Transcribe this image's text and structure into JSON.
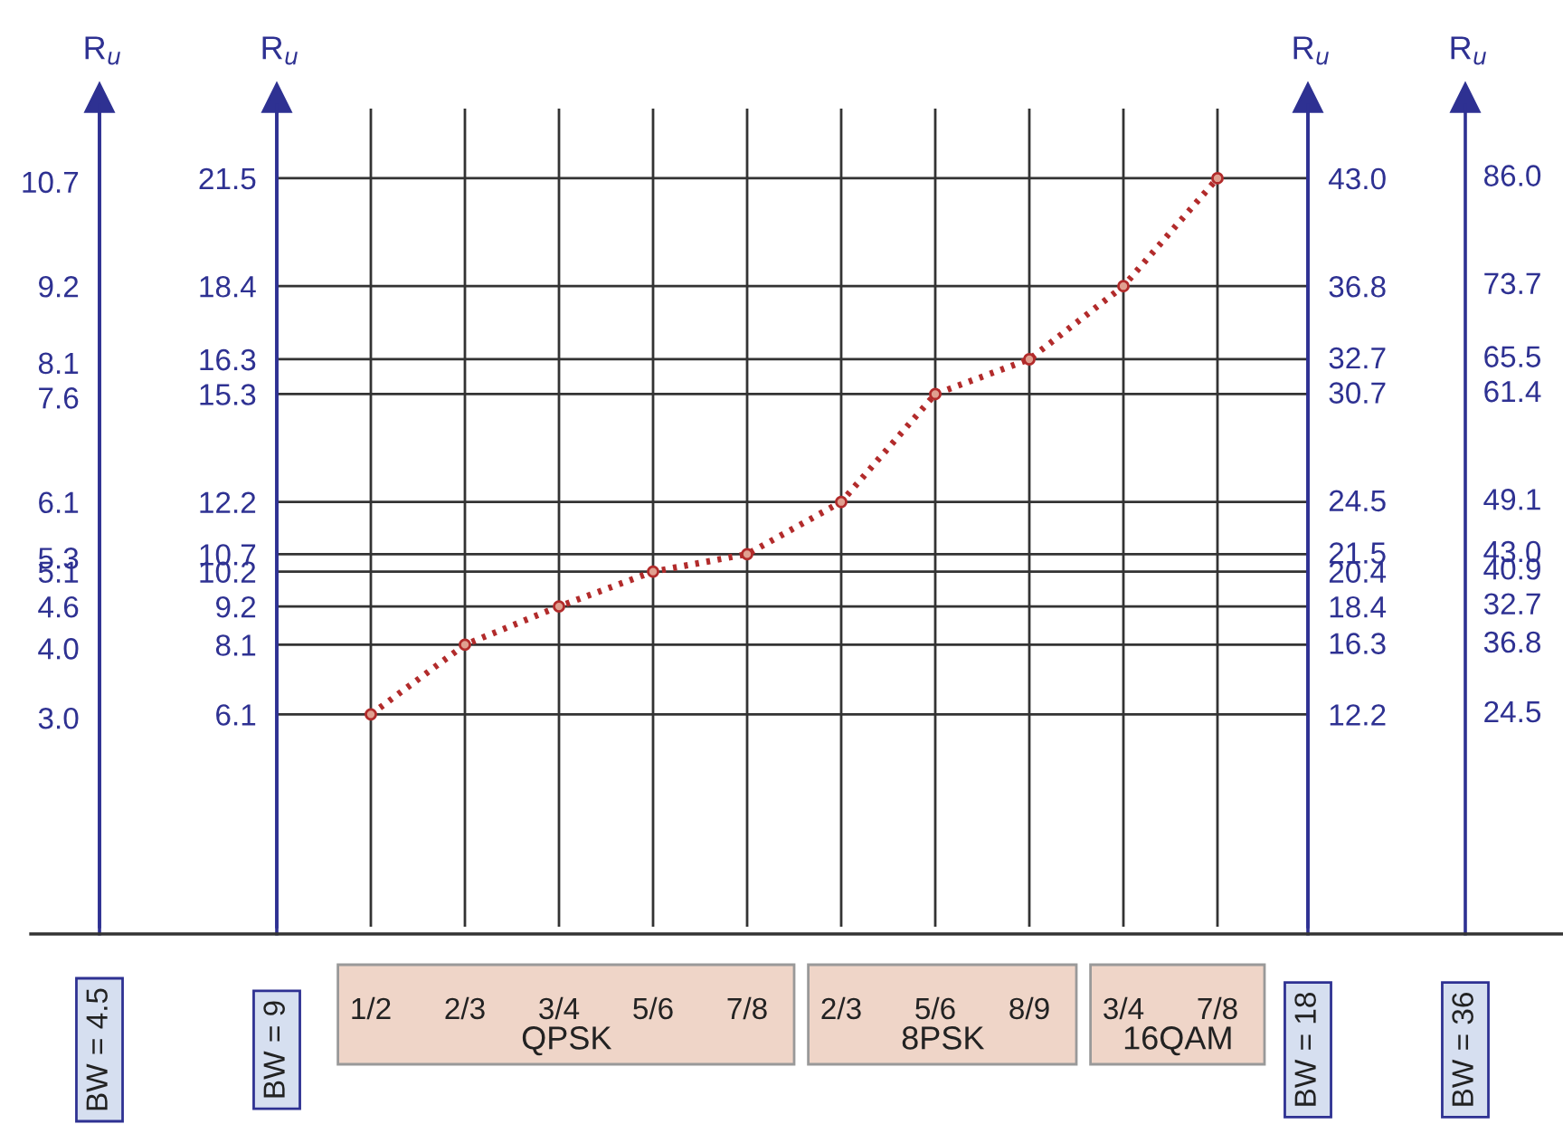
{
  "chart_data": {
    "type": "line",
    "categories": [
      "1/2",
      "2/3",
      "3/4",
      "5/6",
      "7/8",
      "2/3",
      "5/6",
      "8/9",
      "3/4",
      "7/8"
    ],
    "series": [
      {
        "color": "#b22b2b",
        "values": [
          6.1,
          8.1,
          9.2,
          10.2,
          10.7,
          12.2,
          15.3,
          16.3,
          18.4,
          21.5
        ]
      }
    ],
    "marker": "circle",
    "line_style": "dotted",
    "grid": true,
    "ylabel": "R$_{u}$",
    "y2label": "R$_{u}$",
    "y3label": "R$_{u}$",
    "ylim": [
      0,
      23.5
    ],
    "yticks": [
      6.1,
      8.1,
      9.2,
      10.2,
      10.7,
      12.2,
      15.3,
      16.3,
      18.4,
      21.5
    ],
    "y2lim": [
      0,
      47
    ],
    "y2ticks": [
      12.2,
      16.3,
      18.4,
      20.4,
      21.5,
      24.5,
      30.7,
      32.7,
      36.8,
      {
        "value": 43,
        "label": "43.0"
      }
    ],
    "y3lim": [
      0,
      11.75
    ],
    "y3ticks": [
      {
        "value": 3,
        "label": "3.0"
      },
      {
        "value": 4,
        "label": "4.0"
      },
      4.6,
      5.1,
      5.3,
      6.1,
      7.6,
      8.1,
      9.2,
      10.7
    ],
    "annotations": [
      "BW = 4.5",
      "BW = 9",
      "QPSK",
      "8PSK",
      "16QAM",
      "BW = 18",
      "BW = 36",
      "R$_{u}$",
      "24.5",
      "36.8",
      "32.7",
      "40.9",
      "43.0",
      "49.1",
      "61.4",
      "65.5",
      "73.7",
      "86.0"
    ]
  }
}
